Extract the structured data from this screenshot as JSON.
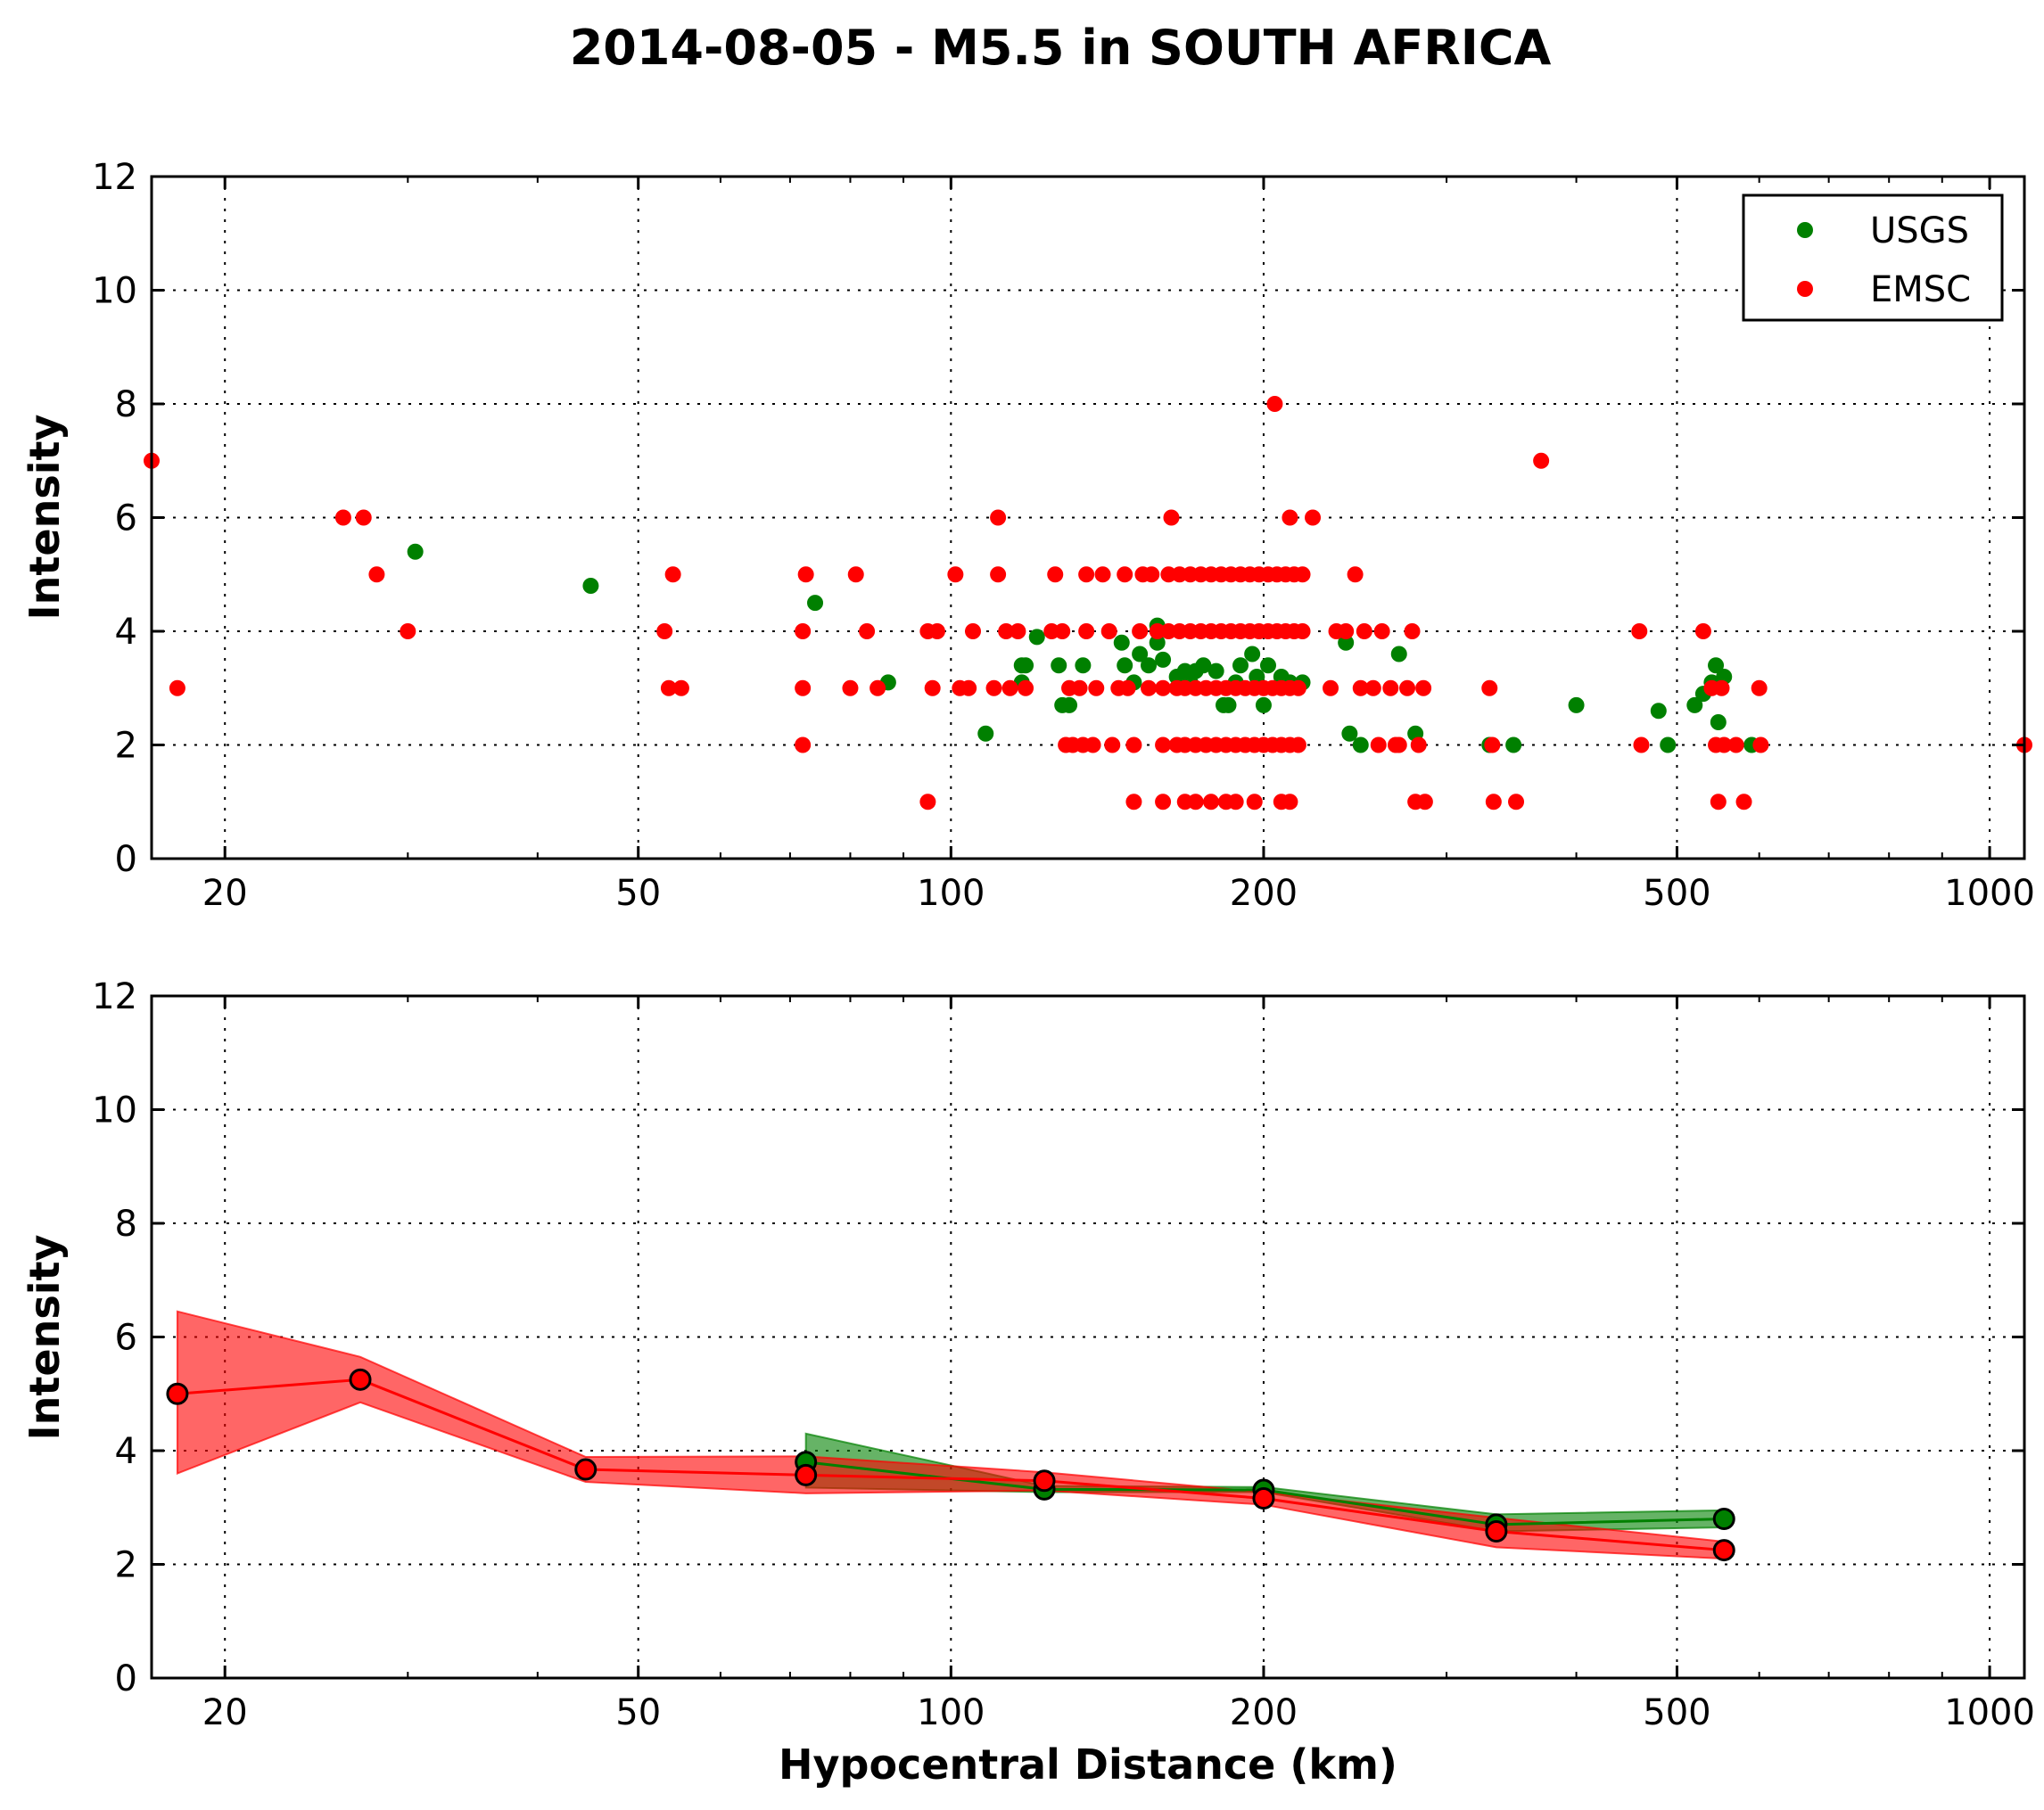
{
  "chart_data": [
    {
      "type": "scatter",
      "title": "2014-08-05 - M5.5 in SOUTH AFRICA",
      "xlabel": "",
      "ylabel": "Intensity",
      "xscale": "log",
      "xlim": [
        17,
        1080
      ],
      "ylim": [
        0,
        12
      ],
      "xticks": [
        20,
        50,
        100,
        200,
        500,
        1000
      ],
      "xtick_labels": [
        "20",
        "50",
        "100",
        "200",
        "500",
        "1000"
      ],
      "yticks": [
        0,
        2,
        4,
        6,
        8,
        10,
        12
      ],
      "ytick_labels": [
        "0",
        "2",
        "4",
        "6",
        "8",
        "10",
        "12"
      ],
      "grid": true,
      "legend": "top-right",
      "series": [
        {
          "name": "USGS",
          "color": "#008000",
          "points": [
            [
              30.5,
              5.4
            ],
            [
              45,
              4.8
            ],
            [
              74,
              4.5
            ],
            [
              87,
              3.1
            ],
            [
              108,
              2.2
            ],
            [
              117,
              3.1
            ],
            [
              117,
              3.4
            ],
            [
              118,
              3.4
            ],
            [
              121,
              3.9
            ],
            [
              127,
              3.4
            ],
            [
              128,
              2.7
            ],
            [
              130,
              2.7
            ],
            [
              134,
              3.4
            ],
            [
              146,
              3.8
            ],
            [
              147,
              3.4
            ],
            [
              150,
              3.1
            ],
            [
              152,
              3.6
            ],
            [
              155,
              3.4
            ],
            [
              158,
              4.1
            ],
            [
              158,
              3.8
            ],
            [
              160,
              3.5
            ],
            [
              165,
              3.2
            ],
            [
              168,
              3.3
            ],
            [
              170,
              3.1
            ],
            [
              172,
              3.3
            ],
            [
              175,
              3.4
            ],
            [
              180,
              3.3
            ],
            [
              183,
              2.7
            ],
            [
              185,
              2.7
            ],
            [
              188,
              3.1
            ],
            [
              190,
              3.4
            ],
            [
              195,
              3.6
            ],
            [
              197,
              3.2
            ],
            [
              200,
              2.7
            ],
            [
              202,
              3.4
            ],
            [
              208,
              3.2
            ],
            [
              212,
              3.1
            ],
            [
              218,
              3.1
            ],
            [
              240,
              3.8
            ],
            [
              242,
              2.2
            ],
            [
              248,
              2.0
            ],
            [
              270,
              3.6
            ],
            [
              280,
              2.2
            ],
            [
              330,
              2.0
            ],
            [
              348,
              2.0
            ],
            [
              400,
              2.7
            ],
            [
              480,
              2.6
            ],
            [
              490,
              2.0
            ],
            [
              520,
              2.7
            ],
            [
              530,
              2.9
            ],
            [
              540,
              3.1
            ],
            [
              545,
              3.4
            ],
            [
              548,
              2.4
            ],
            [
              555,
              3.2
            ],
            [
              590,
              2.0
            ]
          ]
        },
        {
          "name": "EMSC",
          "color": "#ff0000",
          "points": [
            [
              17,
              7
            ],
            [
              18,
              3
            ],
            [
              26,
              6
            ],
            [
              27.2,
              6
            ],
            [
              28,
              5
            ],
            [
              30,
              4
            ],
            [
              53,
              4
            ],
            [
              53.5,
              3
            ],
            [
              54,
              5
            ],
            [
              55,
              3
            ],
            [
              72,
              4
            ],
            [
              72,
              3
            ],
            [
              72,
              2
            ],
            [
              72.5,
              5
            ],
            [
              80,
              3
            ],
            [
              81,
              5
            ],
            [
              83,
              4
            ],
            [
              85,
              3
            ],
            [
              95,
              4
            ],
            [
              95,
              1
            ],
            [
              96,
              3
            ],
            [
              97,
              4
            ],
            [
              101,
              5
            ],
            [
              102,
              3
            ],
            [
              104,
              3
            ],
            [
              105,
              4
            ],
            [
              110,
              3
            ],
            [
              111,
              6
            ],
            [
              111,
              5
            ],
            [
              113,
              4
            ],
            [
              114,
              3
            ],
            [
              116,
              4
            ],
            [
              118,
              3
            ],
            [
              125,
              4
            ],
            [
              126,
              5
            ],
            [
              128,
              4
            ],
            [
              129,
              2
            ],
            [
              130,
              3
            ],
            [
              131,
              2
            ],
            [
              133,
              3
            ],
            [
              134,
              2
            ],
            [
              135,
              4
            ],
            [
              135,
              5
            ],
            [
              137,
              2
            ],
            [
              138,
              3
            ],
            [
              140,
              5
            ],
            [
              142,
              4
            ],
            [
              143,
              2
            ],
            [
              145,
              3
            ],
            [
              147,
              5
            ],
            [
              148,
              3
            ],
            [
              150,
              1
            ],
            [
              150,
              2
            ],
            [
              152,
              4
            ],
            [
              153,
              5
            ],
            [
              155,
              3
            ],
            [
              156,
              5
            ],
            [
              158,
              4
            ],
            [
              160,
              1
            ],
            [
              160,
              2
            ],
            [
              160,
              3
            ],
            [
              162,
              4
            ],
            [
              162,
              5
            ],
            [
              163,
              6
            ],
            [
              165,
              2
            ],
            [
              165,
              3
            ],
            [
              166,
              4
            ],
            [
              166,
              5
            ],
            [
              168,
              1
            ],
            [
              168,
              2
            ],
            [
              168,
              3
            ],
            [
              170,
              4
            ],
            [
              170,
              5
            ],
            [
              172,
              1
            ],
            [
              172,
              2
            ],
            [
              172,
              3
            ],
            [
              174,
              4
            ],
            [
              174,
              5
            ],
            [
              176,
              2
            ],
            [
              176,
              3
            ],
            [
              178,
              1
            ],
            [
              178,
              4
            ],
            [
              178,
              5
            ],
            [
              180,
              2
            ],
            [
              180,
              3
            ],
            [
              182,
              4
            ],
            [
              182,
              5
            ],
            [
              184,
              1
            ],
            [
              184,
              2
            ],
            [
              184,
              3
            ],
            [
              186,
              4
            ],
            [
              186,
              5
            ],
            [
              188,
              1
            ],
            [
              188,
              2
            ],
            [
              188,
              3
            ],
            [
              190,
              4
            ],
            [
              190,
              5
            ],
            [
              192,
              2
            ],
            [
              192,
              3
            ],
            [
              194,
              4
            ],
            [
              194,
              5
            ],
            [
              196,
              1
            ],
            [
              196,
              2
            ],
            [
              196,
              3
            ],
            [
              198,
              4
            ],
            [
              198,
              5
            ],
            [
              200,
              2
            ],
            [
              200,
              3
            ],
            [
              202,
              4
            ],
            [
              202,
              5
            ],
            [
              204,
              2
            ],
            [
              204,
              3
            ],
            [
              205,
              8
            ],
            [
              206,
              4
            ],
            [
              206,
              5
            ],
            [
              208,
              1
            ],
            [
              208,
              2
            ],
            [
              208,
              3
            ],
            [
              210,
              4
            ],
            [
              210,
              5
            ],
            [
              212,
              1
            ],
            [
              212,
              2
            ],
            [
              212,
              3
            ],
            [
              214,
              4
            ],
            [
              214,
              5
            ],
            [
              216,
              2
            ],
            [
              216,
              3
            ],
            [
              218,
              4
            ],
            [
              218,
              5
            ],
            [
              212,
              6
            ],
            [
              223,
              6
            ],
            [
              232,
              3
            ],
            [
              235,
              4
            ],
            [
              240,
              4
            ],
            [
              245,
              5
            ],
            [
              248,
              3
            ],
            [
              250,
              4
            ],
            [
              255,
              3
            ],
            [
              258,
              2
            ],
            [
              260,
              4
            ],
            [
              265,
              3
            ],
            [
              268,
              2
            ],
            [
              270,
              2
            ],
            [
              275,
              3
            ],
            [
              278,
              4
            ],
            [
              280,
              1
            ],
            [
              282,
              2
            ],
            [
              285,
              3
            ],
            [
              286,
              1
            ],
            [
              330,
              3
            ],
            [
              332,
              2
            ],
            [
              333,
              1
            ],
            [
              350,
              1
            ],
            [
              370,
              7
            ],
            [
              460,
              4
            ],
            [
              462,
              2
            ],
            [
              530,
              4
            ],
            [
              540,
              3
            ],
            [
              545,
              2
            ],
            [
              548,
              1
            ],
            [
              552,
              3
            ],
            [
              555,
              2
            ],
            [
              570,
              2
            ],
            [
              580,
              1
            ],
            [
              600,
              3
            ],
            [
              602,
              2
            ],
            [
              1080,
              2
            ]
          ]
        }
      ]
    },
    {
      "type": "line",
      "title": "",
      "xlabel": "Hypocentral Distance (km)",
      "ylabel": "Intensity",
      "xscale": "log",
      "xlim": [
        17,
        1080
      ],
      "ylim": [
        0,
        12
      ],
      "xticks": [
        20,
        50,
        100,
        200,
        500,
        1000
      ],
      "xtick_labels": [
        "20",
        "50",
        "100",
        "200",
        "500",
        "1000"
      ],
      "yticks": [
        0,
        2,
        4,
        6,
        8,
        10,
        12
      ],
      "ytick_labels": [
        "0",
        "2",
        "4",
        "6",
        "8",
        "10",
        "12"
      ],
      "grid": true,
      "series": [
        {
          "name": "USGS",
          "color": "#008000",
          "x": [
            72.5,
            123,
            200,
            335,
            555
          ],
          "y": [
            3.8,
            3.32,
            3.31,
            2.7,
            2.8
          ],
          "lower": [
            3.35,
            3.27,
            3.27,
            2.58,
            2.65
          ],
          "upper": [
            4.3,
            3.38,
            3.36,
            2.88,
            2.95
          ]
        },
        {
          "name": "EMSC",
          "color": "#ff0000",
          "x": [
            18,
            27,
            44.5,
            72.5,
            123,
            200,
            335,
            555
          ],
          "y": [
            5.0,
            5.25,
            3.67,
            3.57,
            3.47,
            3.16,
            2.58,
            2.25
          ],
          "lower": [
            3.6,
            4.85,
            3.45,
            3.25,
            3.3,
            3.05,
            2.3,
            2.1
          ],
          "upper": [
            6.45,
            5.65,
            3.89,
            3.9,
            3.62,
            3.27,
            2.82,
            2.4
          ]
        }
      ]
    }
  ]
}
